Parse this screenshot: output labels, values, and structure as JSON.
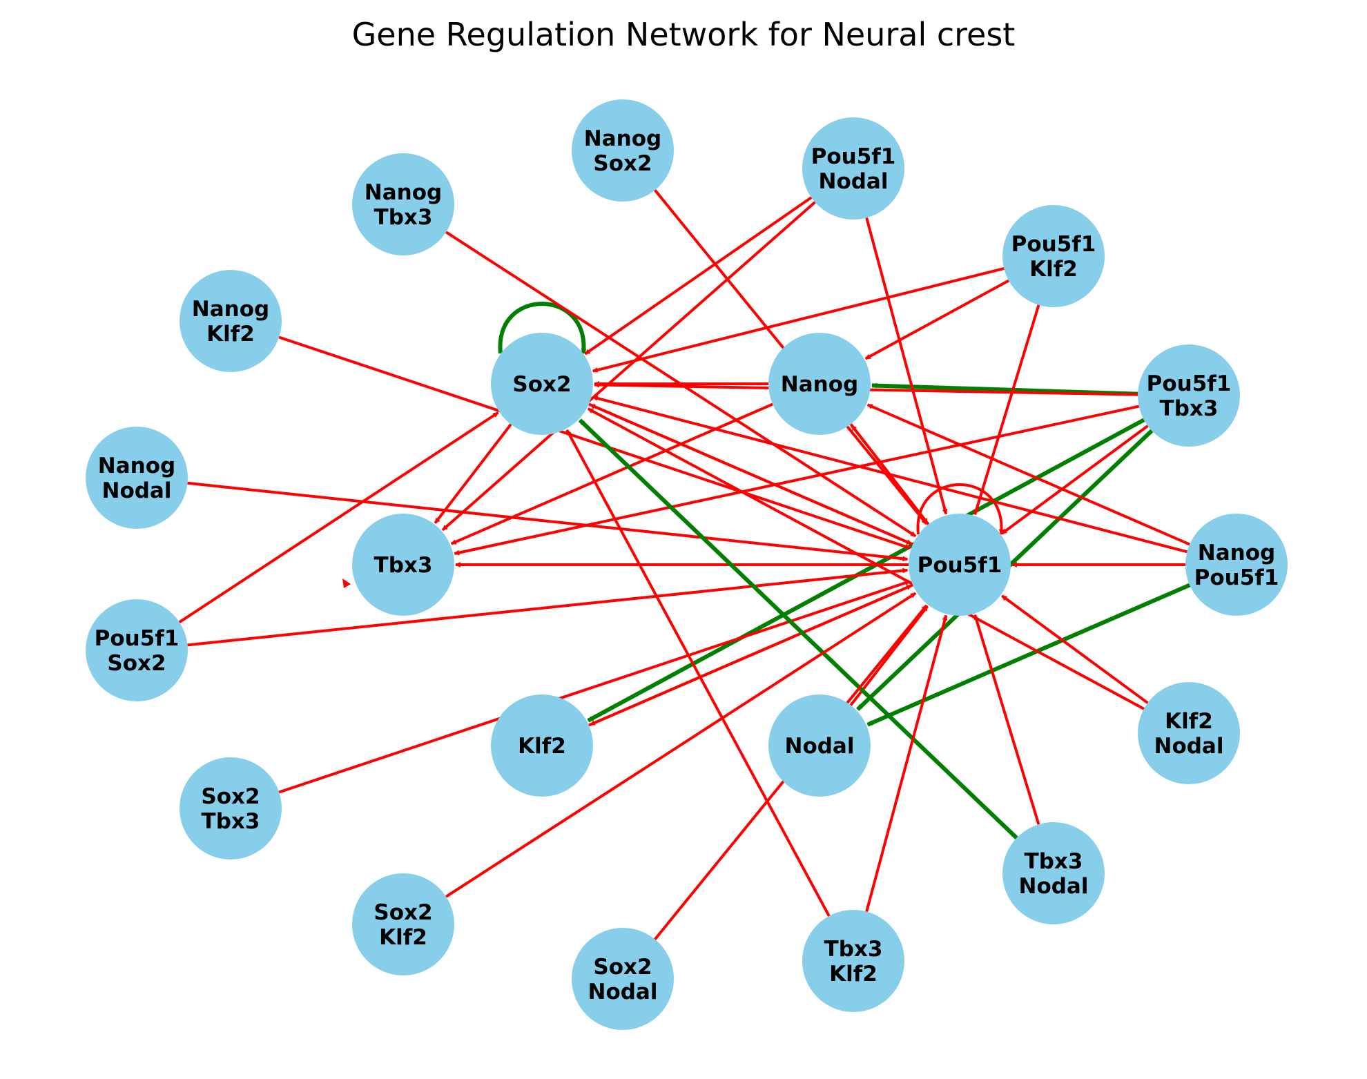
{
  "title": "Gene Regulation Network for Neural crest",
  "colors": {
    "node_fill": "#87ceeb",
    "activation": "#008000",
    "repression": "#ff0000",
    "text": "#000000"
  },
  "nodes": [
    {
      "id": "Sox2",
      "lines": [
        "Sox2"
      ]
    },
    {
      "id": "Nanog",
      "lines": [
        "Nanog"
      ]
    },
    {
      "id": "Tbx3",
      "lines": [
        "Tbx3"
      ]
    },
    {
      "id": "Pou5f1",
      "lines": [
        "Pou5f1"
      ]
    },
    {
      "id": "Klf2",
      "lines": [
        "Klf2"
      ]
    },
    {
      "id": "Nodal",
      "lines": [
        "Nodal"
      ]
    },
    {
      "id": "Nanog_Sox2",
      "lines": [
        "Nanog",
        "Sox2"
      ]
    },
    {
      "id": "Pou5f1_Nodal",
      "lines": [
        "Pou5f1",
        "Nodal"
      ]
    },
    {
      "id": "Nanog_Tbx3",
      "lines": [
        "Nanog",
        "Tbx3"
      ]
    },
    {
      "id": "Pou5f1_Klf2",
      "lines": [
        "Pou5f1",
        "Klf2"
      ]
    },
    {
      "id": "Nanog_Klf2",
      "lines": [
        "Nanog",
        "Klf2"
      ]
    },
    {
      "id": "Pou5f1_Tbx3",
      "lines": [
        "Pou5f1",
        "Tbx3"
      ]
    },
    {
      "id": "Nanog_Nodal",
      "lines": [
        "Nanog",
        "Nodal"
      ]
    },
    {
      "id": "Nanog_Pou5f1",
      "lines": [
        "Nanog",
        "Pou5f1"
      ]
    },
    {
      "id": "Pou5f1_Sox2",
      "lines": [
        "Pou5f1",
        "Sox2"
      ]
    },
    {
      "id": "Klf2_Nodal",
      "lines": [
        "Klf2",
        "Nodal"
      ]
    },
    {
      "id": "Sox2_Tbx3",
      "lines": [
        "Sox2",
        "Tbx3"
      ]
    },
    {
      "id": "Tbx3_Nodal",
      "lines": [
        "Tbx3",
        "Nodal"
      ]
    },
    {
      "id": "Sox2_Klf2",
      "lines": [
        "Sox2",
        "Klf2"
      ]
    },
    {
      "id": "Tbx3_Klf2",
      "lines": [
        "Tbx3",
        "Klf2"
      ]
    },
    {
      "id": "Sox2_Nodal",
      "lines": [
        "Sox2",
        "Nodal"
      ]
    }
  ],
  "edges": [
    {
      "source": "Sox2",
      "target": "Sox2",
      "type": "activation"
    },
    {
      "source": "Pou5f1",
      "target": "Pou5f1",
      "type": "repression"
    },
    {
      "source": "Pou5f1_Tbx3",
      "target": "Nanog",
      "type": "activation"
    },
    {
      "source": "Pou5f1_Tbx3",
      "target": "Pou5f1",
      "type": "repression"
    },
    {
      "source": "Pou5f1_Tbx3",
      "target": "Tbx3",
      "type": "repression"
    },
    {
      "source": "Pou5f1_Tbx3",
      "target": "Klf2",
      "type": "activation"
    },
    {
      "source": "Pou5f1_Tbx3",
      "target": "Nodal",
      "type": "activation"
    },
    {
      "source": "Pou5f1_Tbx3",
      "target": "Sox2",
      "type": "repression"
    },
    {
      "source": "Nanog",
      "target": "Sox2",
      "type": "repression"
    },
    {
      "source": "Nanog",
      "target": "Tbx3",
      "type": "repression"
    },
    {
      "source": "Nanog_Sox2",
      "target": "Pou5f1",
      "type": "repression"
    },
    {
      "source": "Pou5f1_Nodal",
      "target": "Sox2",
      "type": "repression"
    },
    {
      "source": "Pou5f1_Nodal",
      "target": "Pou5f1",
      "type": "repression"
    },
    {
      "source": "Pou5f1_Nodal",
      "target": "Tbx3",
      "type": "repression"
    },
    {
      "source": "Nanog_Tbx3",
      "target": "Pou5f1",
      "type": "repression"
    },
    {
      "source": "Pou5f1_Klf2",
      "target": "Sox2",
      "type": "repression"
    },
    {
      "source": "Pou5f1_Klf2",
      "target": "Pou5f1",
      "type": "repression"
    },
    {
      "source": "Pou5f1_Klf2",
      "target": "Nanog",
      "type": "repression"
    },
    {
      "source": "Nanog_Klf2",
      "target": "Pou5f1",
      "type": "repression"
    },
    {
      "source": "Sox2",
      "target": "Tbx3",
      "type": "repression"
    },
    {
      "source": "Sox2",
      "target": "Pou5f1",
      "type": "repression"
    },
    {
      "source": "Pou5f1",
      "target": "Sox2",
      "type": "repression"
    },
    {
      "source": "Pou5f1",
      "target": "Nanog",
      "type": "repression"
    },
    {
      "source": "Nanog",
      "target": "Pou5f1",
      "type": "repression"
    },
    {
      "source": "Pou5f1",
      "target": "Tbx3",
      "type": "repression"
    },
    {
      "source": "Pou5f1",
      "target": "Klf2",
      "type": "repression"
    },
    {
      "source": "Klf2",
      "target": "Pou5f1",
      "type": "repression"
    },
    {
      "source": "Nodal",
      "target": "Pou5f1",
      "type": "repression"
    },
    {
      "source": "Nanog_Nodal",
      "target": "Pou5f1",
      "type": "repression"
    },
    {
      "source": "Nanog_Pou5f1",
      "target": "Pou5f1",
      "type": "repression"
    },
    {
      "source": "Nanog_Pou5f1",
      "target": "Nanog",
      "type": "repression"
    },
    {
      "source": "Nanog_Pou5f1",
      "target": "Sox2",
      "type": "repression"
    },
    {
      "source": "Nanog_Pou5f1",
      "target": "Nodal",
      "type": "activation"
    },
    {
      "source": "Pou5f1_Sox2",
      "target": "Sox2",
      "type": "repression"
    },
    {
      "source": "Pou5f1_Sox2",
      "target": "Pou5f1",
      "type": "repression"
    },
    {
      "source": "Klf2_Nodal",
      "target": "Pou5f1",
      "type": "repression"
    },
    {
      "source": "Klf2_Nodal",
      "target": "Sox2",
      "type": "repression"
    },
    {
      "source": "Sox2_Tbx3",
      "target": "Pou5f1",
      "type": "repression"
    },
    {
      "source": "Tbx3_Nodal",
      "target": "Sox2",
      "type": "activation"
    },
    {
      "source": "Tbx3_Nodal",
      "target": "Pou5f1",
      "type": "repression"
    },
    {
      "source": "Sox2_Klf2",
      "target": "Pou5f1",
      "type": "repression"
    },
    {
      "source": "Tbx3_Klf2",
      "target": "Sox2",
      "type": "repression"
    },
    {
      "source": "Tbx3_Klf2",
      "target": "Pou5f1",
      "type": "repression"
    },
    {
      "source": "Sox2_Nodal",
      "target": "Pou5f1",
      "type": "repression"
    }
  ]
}
